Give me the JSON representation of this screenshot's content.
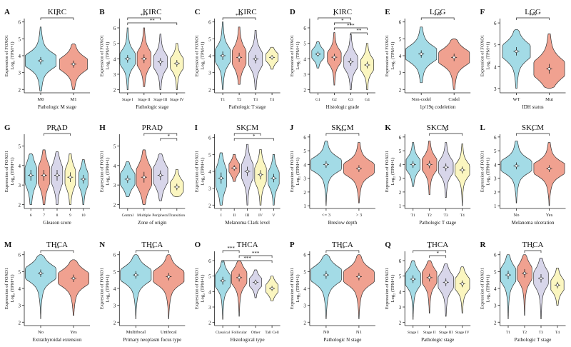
{
  "figure": {
    "ylabel_line1": "Expression of FOXO1",
    "ylabel_line2": "Log₂ (TPM+1)",
    "colors": [
      "#a3dbe6",
      "#f0a190",
      "#d8d6ea",
      "#fbf6c0",
      "#9fd9e3"
    ]
  },
  "chart_data": [
    {
      "type": "violin",
      "panel": "A",
      "title": "KIRC",
      "xlabel": "Pathologic M stage",
      "ylim": [
        1.8,
        6.2
      ],
      "yticks": [
        2,
        3,
        4,
        5,
        6
      ],
      "categories": [
        "M0",
        "M1"
      ],
      "medians": [
        3.7,
        3.5
      ],
      "spreads": [
        0.4,
        0.38
      ],
      "ranges": [
        [
          1.9,
          5.7
        ],
        [
          2.0,
          4.7
        ]
      ],
      "colors": [
        0,
        1
      ],
      "widths": [
        1,
        0.9
      ],
      "brackets": [
        {
          "from": 0,
          "to": 1,
          "label": "*"
        }
      ]
    },
    {
      "type": "violin",
      "panel": "B",
      "title": "KIRC",
      "xlabel": "Pathologic stage",
      "ylim": [
        1.8,
        6.6
      ],
      "yticks": [
        2,
        3,
        4,
        5,
        6
      ],
      "categories": [
        "Stage I",
        "Stage II",
        "Stage III",
        "Stage IV"
      ],
      "medians": [
        4.0,
        4.0,
        3.8,
        3.7
      ],
      "spreads": [
        0.45,
        0.5,
        0.45,
        0.4
      ],
      "ranges": [
        [
          2.0,
          6.0
        ],
        [
          2.2,
          6.0
        ],
        [
          2.0,
          5.6
        ],
        [
          2.0,
          5.0
        ]
      ],
      "colors": [
        0,
        1,
        2,
        3
      ],
      "widths": [
        1,
        0.9,
        0.9,
        0.85
      ],
      "brackets": [
        {
          "from": 0,
          "to": 2,
          "label": "***"
        },
        {
          "from": 0,
          "to": 3,
          "label": "**"
        }
      ]
    },
    {
      "type": "violin",
      "panel": "C",
      "title": "KIRC",
      "xlabel": "Pathologic T stage",
      "ylim": [
        1.8,
        6.2
      ],
      "yticks": [
        2,
        3,
        4,
        5,
        6
      ],
      "categories": [
        "T1",
        "T2",
        "T3",
        "T4"
      ],
      "medians": [
        4.0,
        3.9,
        3.8,
        3.9
      ],
      "spreads": [
        0.45,
        0.5,
        0.45,
        0.25
      ],
      "ranges": [
        [
          2.0,
          6.0
        ],
        [
          2.3,
          5.7
        ],
        [
          2.0,
          5.5
        ],
        [
          3.2,
          4.5
        ]
      ],
      "colors": [
        0,
        1,
        2,
        3
      ],
      "widths": [
        1,
        0.9,
        0.9,
        0.8
      ],
      "brackets": [
        {
          "from": 0,
          "to": 2,
          "label": "***"
        }
      ]
    },
    {
      "type": "violin",
      "panel": "D",
      "title": "KIRC",
      "xlabel": "Histologic grade",
      "ylim": [
        1.8,
        6.6
      ],
      "yticks": [
        2,
        3,
        4,
        5,
        6
      ],
      "categories": [
        "G1",
        "G2",
        "G3",
        "G4"
      ],
      "medians": [
        4.3,
        4.1,
        3.8,
        3.6
      ],
      "spreads": [
        0.3,
        0.4,
        0.45,
        0.4
      ],
      "ranges": [
        [
          3.4,
          5.1
        ],
        [
          2.3,
          5.7
        ],
        [
          2.0,
          5.6
        ],
        [
          2.0,
          5.0
        ]
      ],
      "colors": [
        0,
        1,
        2,
        3
      ],
      "widths": [
        0.8,
        0.9,
        0.9,
        0.85
      ],
      "brackets": [
        {
          "from": 0,
          "to": 2,
          "label": "*"
        },
        {
          "from": 1,
          "to": 2,
          "label": "*"
        },
        {
          "from": 1,
          "to": 3,
          "label": "***"
        },
        {
          "from": 2,
          "to": 3,
          "label": "**"
        }
      ]
    },
    {
      "type": "violin",
      "panel": "E",
      "title": "LGG",
      "xlabel": "1p/19q codeletion",
      "ylim": [
        1.8,
        6.2
      ],
      "yticks": [
        2,
        3,
        4,
        5,
        6
      ],
      "categories": [
        "Non-codel",
        "Codel"
      ],
      "medians": [
        4.1,
        3.9
      ],
      "spreads": [
        0.4,
        0.4
      ],
      "ranges": [
        [
          2.4,
          5.7
        ],
        [
          2.0,
          5.0
        ]
      ],
      "colors": [
        0,
        1
      ],
      "widths": [
        1,
        1
      ],
      "brackets": [
        {
          "from": 0,
          "to": 1,
          "label": "***"
        }
      ]
    },
    {
      "type": "violin",
      "panel": "F",
      "title": "LGG",
      "xlabel": "IDH status",
      "ylim": [
        2.8,
        6.2
      ],
      "yticks": [
        3,
        4,
        5,
        6
      ],
      "categories": [
        "WT",
        "Mut"
      ],
      "medians": [
        4.7,
        3.9
      ],
      "spreads": [
        0.35,
        0.4
      ],
      "ranges": [
        [
          3.0,
          5.7
        ],
        [
          3.0,
          5.5
        ]
      ],
      "colors": [
        0,
        1
      ],
      "widths": [
        0.9,
        1
      ],
      "brackets": [
        {
          "from": 0,
          "to": 1,
          "label": "***"
        }
      ]
    },
    {
      "type": "violin",
      "panel": "G",
      "title": "PRAD",
      "xlabel": "Gleason score",
      "ylim": [
        1.8,
        5.6
      ],
      "yticks": [
        2,
        3,
        4,
        5
      ],
      "categories": [
        "6",
        "7",
        "8",
        "9",
        "10"
      ],
      "medians": [
        3.5,
        3.5,
        3.5,
        3.4,
        3.3
      ],
      "spreads": [
        0.5,
        0.5,
        0.5,
        0.45,
        0.4
      ],
      "ranges": [
        [
          2.0,
          4.6
        ],
        [
          2.0,
          4.8
        ],
        [
          2.0,
          4.7
        ],
        [
          2.0,
          4.6
        ],
        [
          2.0,
          4.3
        ]
      ],
      "colors": [
        0,
        1,
        2,
        3,
        4
      ],
      "widths": [
        0.95,
        0.95,
        0.9,
        0.85,
        0.75
      ],
      "brackets": [
        {
          "from": 1,
          "to": 3,
          "label": "**"
        }
      ]
    },
    {
      "type": "violin",
      "panel": "H",
      "title": "PRAD",
      "xlabel": "Zone of origin",
      "ylim": [
        1.8,
        5.6
      ],
      "yticks": [
        2,
        3,
        4,
        5
      ],
      "categories": [
        "Central",
        "Multiple",
        "Peripheral",
        "Transition"
      ],
      "medians": [
        3.3,
        3.4,
        3.5,
        2.9
      ],
      "spreads": [
        0.35,
        0.5,
        0.45,
        0.3
      ],
      "ranges": [
        [
          2.4,
          4.2
        ],
        [
          2.0,
          4.8
        ],
        [
          2.2,
          4.6
        ],
        [
          2.4,
          3.8
        ]
      ],
      "colors": [
        0,
        1,
        2,
        3
      ],
      "widths": [
        0.95,
        1,
        0.95,
        0.85
      ],
      "brackets": [
        {
          "from": 1,
          "to": 3,
          "label": "*"
        },
        {
          "from": 2,
          "to": 3,
          "label": "*"
        }
      ]
    },
    {
      "type": "violin",
      "panel": "I",
      "title": "SKCM",
      "xlabel": "Melanoma Clark level",
      "ylim": [
        1.8,
        6.2
      ],
      "yticks": [
        2,
        3,
        4,
        5,
        6
      ],
      "categories": [
        "I",
        "II",
        "III",
        "IV",
        "V"
      ],
      "medians": [
        3.6,
        4.2,
        4.0,
        3.8,
        3.6
      ],
      "spreads": [
        0.6,
        0.3,
        0.5,
        0.5,
        0.45
      ],
      "ranges": [
        [
          2.0,
          5.1
        ],
        [
          3.4,
          5.0
        ],
        [
          2.0,
          5.6
        ],
        [
          2.0,
          5.3
        ],
        [
          2.0,
          5.0
        ]
      ],
      "colors": [
        0,
        1,
        2,
        3,
        4
      ],
      "widths": [
        0.9,
        0.85,
        0.95,
        0.95,
        0.9
      ],
      "brackets": [
        {
          "from": 1,
          "to": 3,
          "label": "*"
        },
        {
          "from": 1,
          "to": 4,
          "label": "*"
        }
      ]
    },
    {
      "type": "violin",
      "panel": "J",
      "title": "SKCM",
      "xlabel": "Breslow depth",
      "ylim": [
        0.8,
        6.2
      ],
      "yticks": [
        1,
        2,
        3,
        4,
        5,
        6
      ],
      "categories": [
        "<= 3",
        "> 3"
      ],
      "medians": [
        4.0,
        3.7
      ],
      "spreads": [
        0.45,
        0.45
      ],
      "ranges": [
        [
          1.0,
          5.7
        ],
        [
          1.2,
          5.6
        ]
      ],
      "colors": [
        0,
        1
      ],
      "widths": [
        1,
        1
      ],
      "brackets": [
        {
          "from": 0,
          "to": 1,
          "label": "***"
        }
      ]
    },
    {
      "type": "violin",
      "panel": "K",
      "title": "SKCM",
      "xlabel": "Pathologic T stage",
      "ylim": [
        0.8,
        6.2
      ],
      "yticks": [
        1,
        2,
        3,
        4,
        5,
        6
      ],
      "categories": [
        "T1",
        "T2",
        "T3",
        "T4"
      ],
      "medians": [
        4.0,
        4.0,
        3.8,
        3.6
      ],
      "spreads": [
        0.45,
        0.5,
        0.5,
        0.45
      ],
      "ranges": [
        [
          2.4,
          5.6
        ],
        [
          1.8,
          5.7
        ],
        [
          1.6,
          5.6
        ],
        [
          1.0,
          5.5
        ]
      ],
      "colors": [
        0,
        1,
        2,
        3
      ],
      "widths": [
        0.9,
        0.95,
        0.95,
        0.95
      ],
      "brackets": [
        {
          "from": 1,
          "to": 3,
          "label": "*"
        }
      ]
    },
    {
      "type": "violin",
      "panel": "L",
      "title": "SKCM",
      "xlabel": "Melanoma ulceration",
      "ylim": [
        0.8,
        6.2
      ],
      "yticks": [
        1,
        2,
        3,
        4,
        5,
        6
      ],
      "categories": [
        "No",
        "Yes"
      ],
      "medians": [
        3.9,
        3.7
      ],
      "spreads": [
        0.45,
        0.45
      ],
      "ranges": [
        [
          1.2,
          5.7
        ],
        [
          1.0,
          5.6
        ]
      ],
      "colors": [
        0,
        1
      ],
      "widths": [
        1,
        1
      ],
      "brackets": [
        {
          "from": 0,
          "to": 1,
          "label": "*"
        }
      ]
    },
    {
      "type": "violin",
      "panel": "M",
      "title": "THCA",
      "xlabel": "Extrathyroidal extension",
      "ylim": [
        1.8,
        6.2
      ],
      "yticks": [
        2,
        3,
        4,
        5,
        6
      ],
      "categories": [
        "No",
        "Yes"
      ],
      "medians": [
        4.9,
        4.6
      ],
      "spreads": [
        0.4,
        0.4
      ],
      "ranges": [
        [
          2.2,
          6.0
        ],
        [
          2.4,
          5.7
        ]
      ],
      "colors": [
        0,
        1
      ],
      "widths": [
        1,
        1
      ],
      "brackets": [
        {
          "from": 0,
          "to": 1,
          "label": "**"
        }
      ]
    },
    {
      "type": "violin",
      "panel": "N",
      "title": "THCA",
      "xlabel": "Primary neoplasm focus type",
      "ylim": [
        1.8,
        6.2
      ],
      "yticks": [
        2,
        3,
        4,
        5,
        6
      ],
      "categories": [
        "Multifocal",
        "Unifocal"
      ],
      "medians": [
        4.8,
        4.7
      ],
      "spreads": [
        0.4,
        0.4
      ],
      "ranges": [
        [
          2.2,
          6.0
        ],
        [
          2.2,
          6.0
        ]
      ],
      "colors": [
        0,
        1
      ],
      "widths": [
        1,
        1
      ],
      "brackets": [
        {
          "from": 0,
          "to": 1,
          "label": "**"
        }
      ]
    },
    {
      "type": "violin",
      "panel": "O",
      "title": "THCA",
      "xlabel": "Histological type",
      "ylim": [
        1.8,
        6.6
      ],
      "yticks": [
        2,
        3,
        4,
        5,
        6
      ],
      "categories": [
        "Classical",
        "Follicular",
        "Other",
        "Tall Cell"
      ],
      "medians": [
        4.7,
        4.9,
        4.6,
        4.2
      ],
      "spreads": [
        0.45,
        0.45,
        0.3,
        0.3
      ],
      "ranges": [
        [
          2.2,
          6.0
        ],
        [
          2.4,
          6.0
        ],
        [
          3.6,
          5.4
        ],
        [
          3.4,
          5.0
        ]
      ],
      "colors": [
        0,
        1,
        2,
        3
      ],
      "widths": [
        1,
        1,
        0.8,
        0.8
      ],
      "brackets": [
        {
          "from": 0,
          "to": 1,
          "label": "***"
        },
        {
          "from": 1,
          "to": 3,
          "label": "***"
        },
        {
          "from": 0,
          "to": 3,
          "label": "***"
        }
      ]
    },
    {
      "type": "violin",
      "panel": "P",
      "title": "THCA",
      "xlabel": "Pathologic N stage",
      "ylim": [
        1.8,
        6.2
      ],
      "yticks": [
        2,
        3,
        4,
        5,
        6
      ],
      "categories": [
        "N0",
        "N1"
      ],
      "medians": [
        4.8,
        4.7
      ],
      "spreads": [
        0.42,
        0.4
      ],
      "ranges": [
        [
          2.2,
          6.0
        ],
        [
          2.2,
          6.0
        ]
      ],
      "colors": [
        0,
        1
      ],
      "widths": [
        1,
        1
      ],
      "brackets": [
        {
          "from": 0,
          "to": 1,
          "label": "**"
        }
      ]
    },
    {
      "type": "violin",
      "panel": "Q",
      "title": "THCA",
      "xlabel": "Pathologic stage",
      "ylim": [
        1.8,
        6.6
      ],
      "yticks": [
        2,
        3,
        4,
        5,
        6
      ],
      "categories": [
        "Stage I",
        "Stage II",
        "Stage III",
        "Stage IV"
      ],
      "medians": [
        4.8,
        4.9,
        4.6,
        4.5
      ],
      "spreads": [
        0.45,
        0.45,
        0.45,
        0.4
      ],
      "ranges": [
        [
          2.2,
          6.0
        ],
        [
          2.6,
          6.0
        ],
        [
          2.4,
          5.8
        ],
        [
          2.6,
          5.6
        ]
      ],
      "colors": [
        0,
        1,
        2,
        3
      ],
      "widths": [
        1,
        0.95,
        1,
        0.95
      ],
      "brackets": [
        {
          "from": 0,
          "to": 2,
          "label": "*"
        },
        {
          "from": 1,
          "to": 2,
          "label": "*"
        }
      ]
    },
    {
      "type": "violin",
      "panel": "R",
      "title": "THCA",
      "xlabel": "Pathologic T stage",
      "ylim": [
        1.8,
        6.2
      ],
      "yticks": [
        2,
        3,
        4,
        5,
        6
      ],
      "categories": [
        "T1",
        "T2",
        "T3",
        "T4"
      ],
      "medians": [
        4.8,
        4.9,
        4.6,
        4.2
      ],
      "spreads": [
        0.45,
        0.45,
        0.45,
        0.35
      ],
      "ranges": [
        [
          2.2,
          6.0
        ],
        [
          2.4,
          6.0
        ],
        [
          2.2,
          5.8
        ],
        [
          3.0,
          5.2
        ]
      ],
      "colors": [
        0,
        1,
        2,
        3
      ],
      "widths": [
        1,
        0.95,
        0.95,
        0.85
      ],
      "brackets": [
        {
          "from": 1,
          "to": 2,
          "label": "*"
        }
      ]
    }
  ]
}
